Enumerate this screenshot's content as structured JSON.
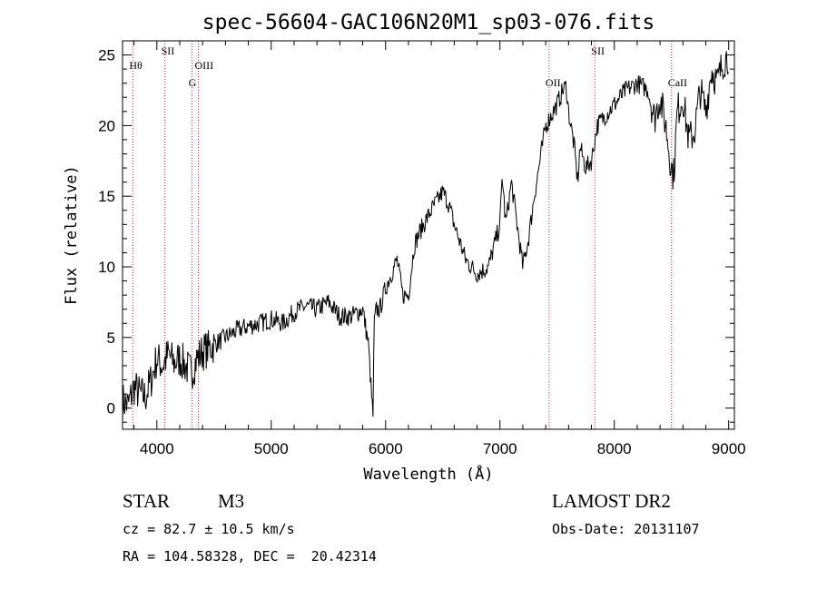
{
  "chart_data": {
    "type": "line",
    "title": "spec-56604-GAC106N20M1_sp03-076.fits",
    "xlabel": "Wavelength (Å)",
    "ylabel": "Flux (relative)",
    "xlim": [
      3700,
      9050
    ],
    "ylim": [
      -1.5,
      26
    ],
    "x_ticks": [
      4000,
      5000,
      6000,
      7000,
      8000,
      9000
    ],
    "y_ticks": [
      0,
      5,
      10,
      15,
      20,
      25
    ],
    "series": [
      {
        "x": [
          3700,
          3750,
          3800,
          3850,
          3900,
          3950,
          4000,
          4050,
          4100,
          4150,
          4200,
          4250,
          4300,
          4350,
          4400,
          4450,
          4500,
          4600,
          4700,
          4800,
          4900,
          5000,
          5100,
          5200,
          5300,
          5400,
          5500,
          5600,
          5700,
          5800,
          5850,
          5880,
          5890,
          5900,
          5920,
          5950,
          6000,
          6100,
          6150,
          6200,
          6250,
          6300,
          6400,
          6500,
          6550,
          6600,
          6700,
          6800,
          6900,
          7000,
          7020,
          7050,
          7100,
          7150,
          7200,
          7250,
          7300,
          7400,
          7500,
          7550,
          7580,
          7600,
          7650,
          7680,
          7700,
          7750,
          7800,
          7850,
          7900,
          8000,
          8100,
          8200,
          8300,
          8350,
          8400,
          8450,
          8500,
          8520,
          8550,
          8600,
          8650,
          8700,
          8750,
          8800,
          8850,
          8900,
          8950,
          9000
        ],
        "y": [
          0.5,
          0.2,
          1.5,
          1.0,
          0.8,
          2.0,
          3.5,
          3.0,
          3.8,
          3.2,
          3.5,
          3.0,
          2.5,
          3.5,
          4.0,
          4.2,
          4.5,
          5.0,
          5.5,
          5.8,
          6.0,
          6.3,
          6.0,
          6.8,
          7.2,
          7.0,
          7.5,
          6.5,
          6.5,
          7.0,
          4.5,
          0.5,
          -0.5,
          6.0,
          7.0,
          7.0,
          8.5,
          10.5,
          8.0,
          8.0,
          11.5,
          12.5,
          14.0,
          15.3,
          14.5,
          13.0,
          10.5,
          9.5,
          10.0,
          13.0,
          16.5,
          13.0,
          16.0,
          13.0,
          10.0,
          12.0,
          15.0,
          20.0,
          21.5,
          22.5,
          22.8,
          21.0,
          18.5,
          16.0,
          18.5,
          17.0,
          17.5,
          20.0,
          20.5,
          21.5,
          22.5,
          23.0,
          22.5,
          20.5,
          22.0,
          20.0,
          17.0,
          16.5,
          21.0,
          22.0,
          19.0,
          19.5,
          22.5,
          21.0,
          24.0,
          23.0,
          24.5,
          25.0
        ]
      }
    ],
    "reference_lines": [
      {
        "x": 3790,
        "label": "Hθ"
      },
      {
        "x": 4070,
        "label": "SII"
      },
      {
        "x": 4308,
        "label": "G"
      },
      {
        "x": 4363,
        "label": "OIII"
      },
      {
        "x": 7430,
        "label": "OII"
      },
      {
        "x": 7830,
        "label": "SII"
      },
      {
        "x": 8500,
        "label": "CaII"
      }
    ],
    "grid": false,
    "line_color": "#000000",
    "reference_line_color": "#cc2a2a"
  },
  "info": {
    "object_class": "STAR",
    "subclass": "M3",
    "survey": "LAMOST DR2",
    "cz": "cz = 82.7 ± 10.5 km/s",
    "obs_date": "Obs-Date: 20131107",
    "coords": "RA = 104.58328, DEC =  20.42314"
  }
}
